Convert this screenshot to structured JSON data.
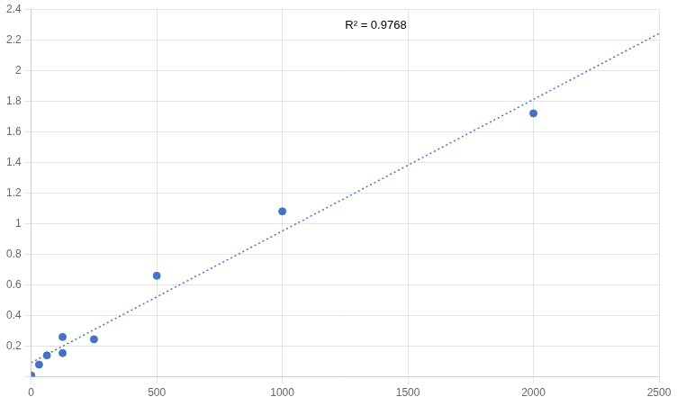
{
  "chart_data": {
    "type": "scatter",
    "series": [
      {
        "type": "scatter",
        "color": "#4472C4",
        "x": [
          0,
          31.25,
          62.5,
          125,
          125,
          250,
          500,
          1000,
          2000
        ],
        "values": [
          0.009,
          0.08,
          0.14,
          0.155,
          0.26,
          0.245,
          0.66,
          1.08,
          1.72
        ]
      },
      {
        "type": "line",
        "line_style": "dotted",
        "color": "#4472C4",
        "x": [
          0,
          2500
        ],
        "values": [
          0.09233,
          2.24073
        ]
      }
    ],
    "annotations": [
      "R² = 0.9768"
    ],
    "xlim": [
      0,
      2500
    ],
    "xticks": [
      0,
      500,
      1000,
      1500,
      2000,
      2500
    ],
    "ylim": [
      0,
      2.4
    ],
    "yticks": [
      {
        "value": 0,
        "label": null
      },
      0.2,
      0.4,
      0.6,
      0.8,
      1,
      1.2,
      1.4,
      1.6,
      1.8,
      2,
      2.2,
      2.4
    ],
    "grid": true
  }
}
